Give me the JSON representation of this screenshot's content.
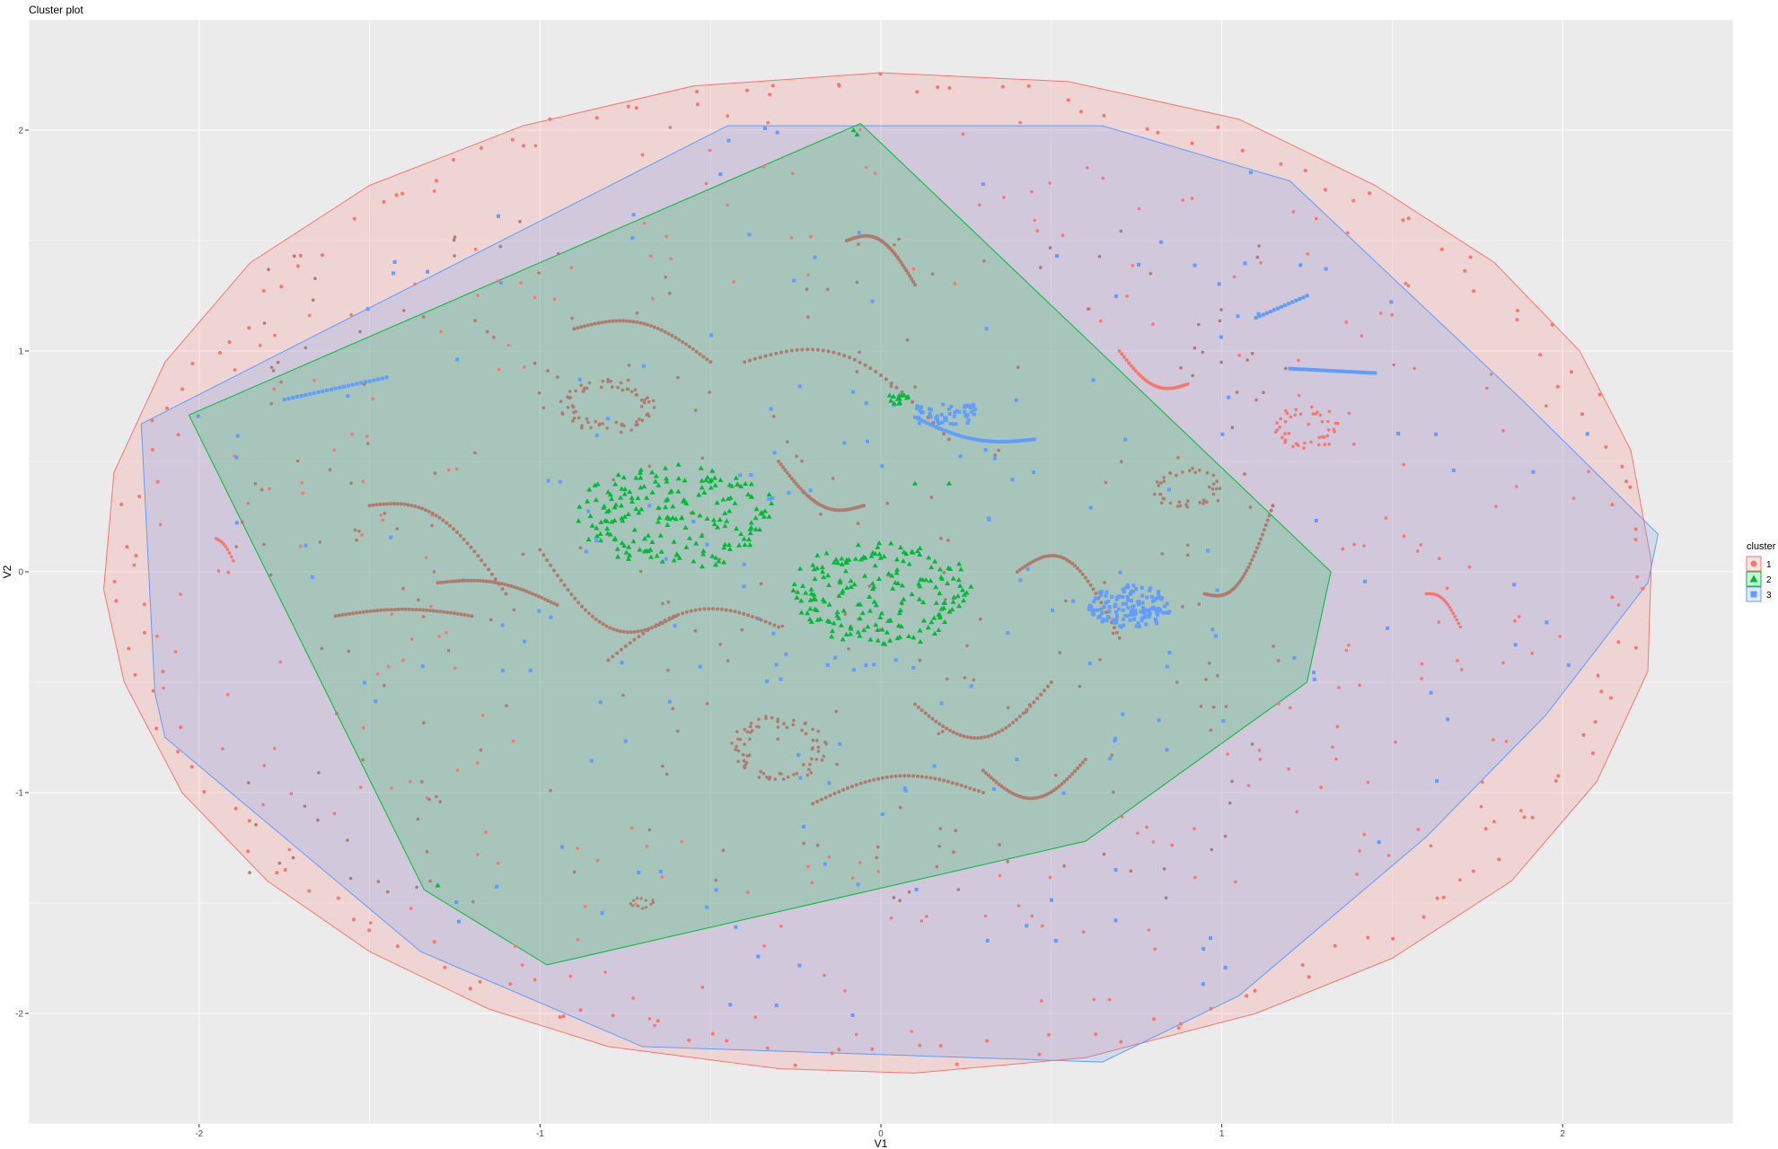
{
  "chart_data": {
    "type": "scatter",
    "title": "Cluster plot",
    "xlabel": "V1",
    "ylabel": "V2",
    "xlim": [
      -2.5,
      2.5
    ],
    "ylim": [
      -2.5,
      2.5
    ],
    "x_ticks": [
      -2,
      -1,
      0,
      1,
      2
    ],
    "y_ticks": [
      -2,
      -1,
      0,
      1,
      2
    ],
    "x_tick_labels": [
      "-2",
      "-1",
      "0",
      "1",
      "2"
    ],
    "y_tick_labels": [
      "-2",
      "-1",
      "0",
      "1",
      "2"
    ],
    "grid": true,
    "legend": {
      "title": "cluster",
      "placement": "right",
      "entries": [
        {
          "label": "1",
          "shape": "circle",
          "color": "#F8766D"
        },
        {
          "label": "2",
          "shape": "triangle",
          "color": "#00BA38"
        },
        {
          "label": "3",
          "shape": "square",
          "color": "#619CFF"
        }
      ]
    },
    "series": [
      {
        "name": "1",
        "color": "#F8766D",
        "hull": [
          [
            -2.28,
            -0.08
          ],
          [
            -2.22,
            -0.5
          ],
          [
            -2.05,
            -1.0
          ],
          [
            -1.8,
            -1.4
          ],
          [
            -1.5,
            -1.72
          ],
          [
            -1.15,
            -1.98
          ],
          [
            -0.8,
            -2.15
          ],
          [
            -0.3,
            -2.25
          ],
          [
            0.1,
            -2.27
          ],
          [
            0.6,
            -2.2
          ],
          [
            1.1,
            -2.0
          ],
          [
            1.5,
            -1.75
          ],
          [
            1.85,
            -1.4
          ],
          [
            2.1,
            -0.95
          ],
          [
            2.25,
            -0.45
          ],
          [
            2.26,
            0.05
          ],
          [
            2.2,
            0.55
          ],
          [
            2.05,
            1.0
          ],
          [
            1.8,
            1.4
          ],
          [
            1.45,
            1.75
          ],
          [
            1.05,
            2.05
          ],
          [
            0.55,
            2.22
          ],
          [
            0.0,
            2.26
          ],
          [
            -0.55,
            2.2
          ],
          [
            -1.05,
            2.02
          ],
          [
            -1.5,
            1.75
          ],
          [
            -1.85,
            1.4
          ],
          [
            -2.1,
            0.95
          ],
          [
            -2.25,
            0.45
          ]
        ]
      },
      {
        "name": "2",
        "color": "#00BA38",
        "hull": [
          [
            -2.03,
            0.71
          ],
          [
            -0.06,
            2.03
          ],
          [
            1.32,
            0.0
          ],
          [
            1.25,
            -0.5
          ],
          [
            0.6,
            -1.22
          ],
          [
            -0.98,
            -1.78
          ],
          [
            -1.34,
            -1.44
          ]
        ]
      },
      {
        "name": "3",
        "color": "#619CFF",
        "hull": [
          [
            -2.17,
            0.67
          ],
          [
            -0.45,
            2.02
          ],
          [
            0.65,
            2.02
          ],
          [
            1.2,
            1.77
          ],
          [
            1.88,
            0.78
          ],
          [
            2.28,
            0.17
          ],
          [
            2.25,
            -0.05
          ],
          [
            1.95,
            -0.65
          ],
          [
            1.6,
            -1.2
          ],
          [
            1.05,
            -1.92
          ],
          [
            0.65,
            -2.22
          ],
          [
            -0.7,
            -2.15
          ],
          [
            -1.35,
            -1.72
          ],
          [
            -2.1,
            -0.75
          ],
          [
            -2.13,
            -0.55
          ]
        ]
      }
    ]
  }
}
